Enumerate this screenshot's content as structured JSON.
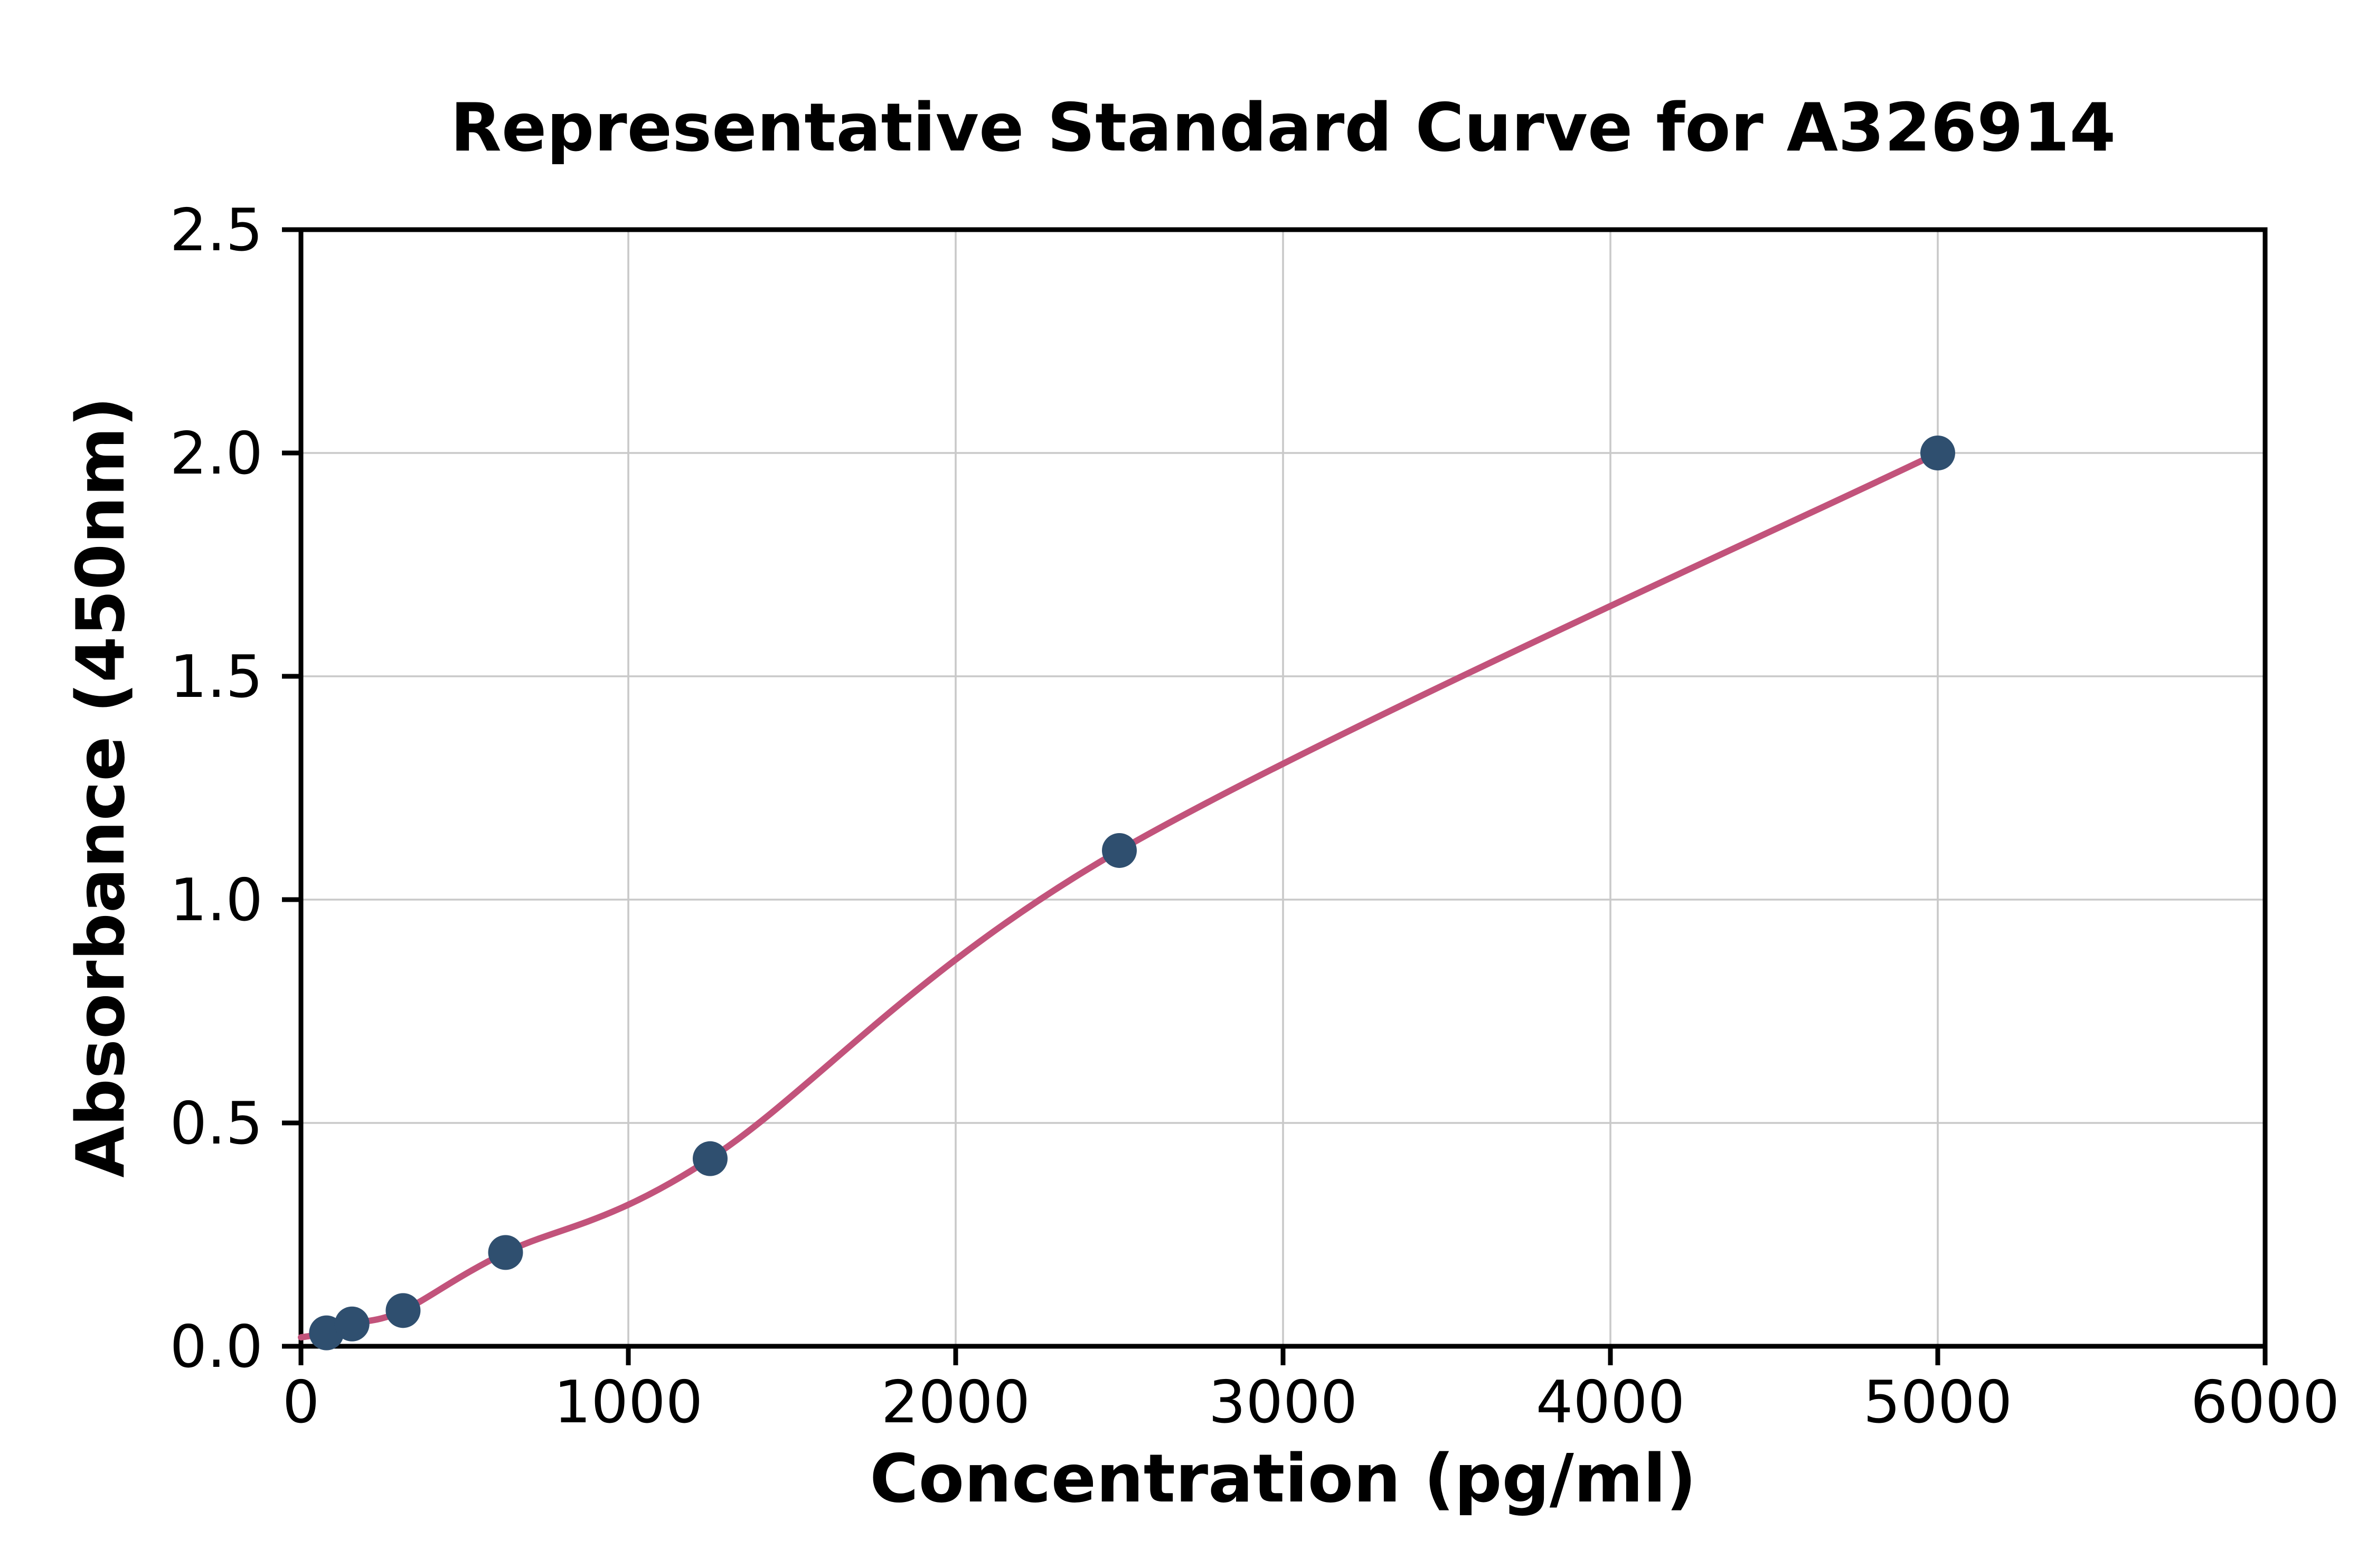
{
  "chart_data": {
    "type": "scatter",
    "title": "Representative Standard Curve for A326914",
    "xlabel": "Concentration (pg/ml)",
    "ylabel": "Absorbance (450nm)",
    "xlim": [
      0,
      6000
    ],
    "ylim": [
      0,
      2.5
    ],
    "xticks": [
      0,
      1000,
      2000,
      3000,
      4000,
      5000,
      6000
    ],
    "xticklabels": [
      "0",
      "1000",
      "2000",
      "3000",
      "4000",
      "5000",
      "6000"
    ],
    "yticks": [
      0.0,
      0.5,
      1.0,
      1.5,
      2.0,
      2.5
    ],
    "yticklabels": [
      "0.0",
      "0.5",
      "1.0",
      "1.5",
      "2.0",
      "2.5"
    ],
    "grid": true,
    "legend": "none",
    "points": [
      {
        "x": 78,
        "y": 0.03
      },
      {
        "x": 156,
        "y": 0.05
      },
      {
        "x": 312,
        "y": 0.08
      },
      {
        "x": 625,
        "y": 0.21
      },
      {
        "x": 1250,
        "y": 0.42
      },
      {
        "x": 2500,
        "y": 1.11
      },
      {
        "x": 5000,
        "y": 2.0
      }
    ],
    "curve_start": {
      "x": 0,
      "y": 0.02
    },
    "colors": {
      "curve": "#c2537b",
      "points": "#2f4f6f",
      "grid": "#c9c9c9",
      "axis": "#000000",
      "background": "#ffffff"
    }
  }
}
